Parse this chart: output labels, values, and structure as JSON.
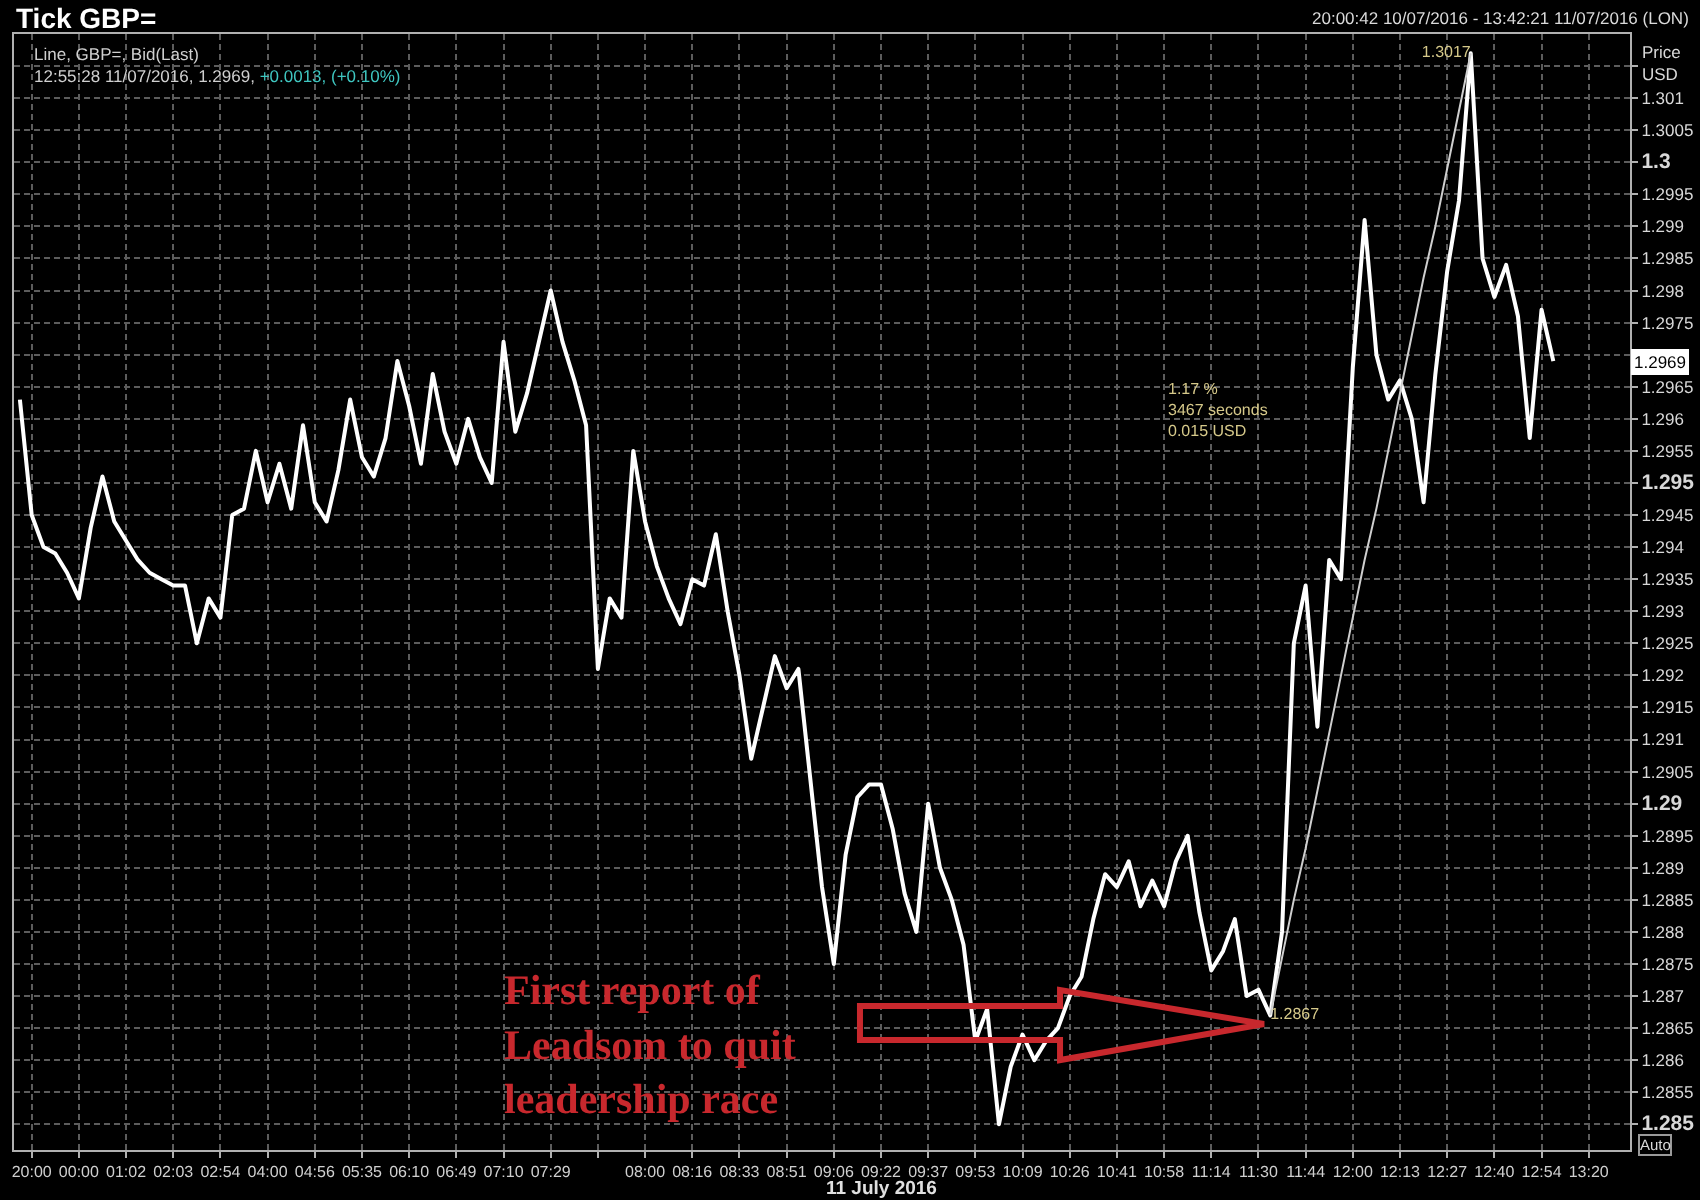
{
  "chart_data": {
    "type": "line",
    "title": "Tick GBP=",
    "xlabel": "11 July 2016",
    "ylabel": "Price\nUSD",
    "annotations": [
      "Line, GBP=, Bid(Last)",
      "12:55:28 11/07/2016, 1.2969,",
      "+0.0013, (+0.10%)",
      "20:00:42 10/07/2016 - 13:42:21 11/07/2016 (LON)",
      "1.17 %\n3467 seconds\n0.015 USD",
      "First report of\nLeadsom to quit\nleadership race",
      "Auto",
      {
        "text": "1.2969",
        "y": 1.2969
      }
    ],
    "categories": [
      null,
      "20:00",
      null,
      null,
      null,
      "00:00",
      null,
      null,
      null,
      "01:02",
      null,
      null,
      null,
      "02:03",
      null,
      null,
      null,
      "02:54",
      null,
      null,
      null,
      "04:00",
      null,
      null,
      null,
      "04:56",
      null,
      null,
      null,
      "05:35",
      null,
      null,
      null,
      "06:10",
      null,
      null,
      null,
      "06:49",
      null,
      null,
      null,
      "07:10",
      null,
      null,
      null,
      "07:29",
      null,
      null,
      null,
      null,
      null,
      null,
      null,
      "08:00",
      null,
      null,
      null,
      "08:16",
      null,
      null,
      null,
      "08:33",
      null,
      null,
      null,
      "08:51",
      null,
      null,
      null,
      "09:06",
      null,
      null,
      null,
      "09:22",
      null,
      null,
      null,
      "09:37",
      null,
      null,
      null,
      "09:53",
      null,
      null,
      null,
      "10:09",
      null,
      null,
      null,
      "10:26",
      null,
      null,
      null,
      "10:41",
      null,
      null,
      null,
      "10:58",
      null,
      null,
      null,
      "11:14",
      null,
      null,
      null,
      "11:30",
      null,
      null,
      null,
      "11:44",
      null,
      null,
      null,
      "12:00",
      null,
      null,
      null,
      "12:13",
      null,
      null,
      null,
      "12:27",
      null,
      null,
      null,
      "12:40",
      null,
      null,
      null,
      "12:54",
      null,
      null,
      null,
      "13:20",
      null,
      null,
      null
    ],
    "series": [
      {
        "color": "#ffffff",
        "values": [
          1.2963,
          1.2945,
          1.294,
          1.2939,
          1.2936,
          1.2932,
          1.2943,
          1.2951,
          1.2944,
          1.2941,
          1.2938,
          1.2936,
          1.2935,
          1.2934,
          1.2934,
          1.2925,
          1.2932,
          1.2929,
          1.2945,
          1.2946,
          1.2955,
          1.2947,
          1.2953,
          1.2946,
          1.2959,
          1.2947,
          1.2944,
          1.2952,
          1.2963,
          1.2954,
          1.2951,
          1.2957,
          1.2969,
          1.2962,
          1.2953,
          1.2967,
          1.2958,
          1.2953,
          1.296,
          1.2954,
          1.295,
          1.2972,
          1.2958,
          1.2964,
          1.2972,
          1.298,
          1.2972,
          1.2966,
          1.2959,
          1.2921,
          1.2932,
          1.2929,
          1.2955,
          1.2944,
          1.2937,
          1.2932,
          1.2928,
          1.2935,
          1.2934,
          1.2942,
          1.293,
          1.292,
          1.2907,
          1.2915,
          1.2923,
          1.2918,
          1.2921,
          1.2904,
          1.2887,
          1.2875,
          1.2892,
          1.2901,
          1.2903,
          1.2903,
          1.2896,
          1.2886,
          1.288,
          1.29,
          1.289,
          1.2885,
          1.2878,
          1.2863,
          1.2868,
          1.285,
          1.2859,
          1.2864,
          1.286,
          1.2863,
          1.2865,
          1.287,
          1.2873,
          1.2882,
          1.2889,
          1.2887,
          1.2891,
          1.2884,
          1.2888,
          1.2884,
          1.2891,
          1.2895,
          1.2883,
          1.2874,
          1.2877,
          1.2882,
          1.287,
          1.2871,
          1.2867,
          1.288,
          1.2925,
          1.2934,
          1.2912,
          1.2938,
          1.2935,
          1.2968,
          1.2991,
          1.297,
          1.2963,
          1.2966,
          1.296,
          1.2947,
          1.2967,
          1.2983,
          1.2994,
          1.3017,
          1.2985,
          1.2979,
          1.2984,
          1.2976,
          1.2957,
          1.2977,
          1.2969,
          null,
          null,
          null,
          null,
          null,
          null
        ],
        "value_labels": [
          null,
          null,
          null,
          null,
          null,
          null,
          null,
          null,
          null,
          null,
          null,
          null,
          null,
          null,
          null,
          null,
          null,
          null,
          null,
          null,
          null,
          null,
          null,
          null,
          null,
          null,
          null,
          null,
          null,
          null,
          null,
          null,
          null,
          null,
          null,
          null,
          null,
          null,
          null,
          null,
          null,
          null,
          null,
          null,
          null,
          null,
          null,
          null,
          null,
          null,
          null,
          null,
          null,
          null,
          null,
          null,
          null,
          null,
          null,
          null,
          null,
          null,
          null,
          null,
          null,
          null,
          null,
          null,
          null,
          null,
          null,
          null,
          null,
          null,
          null,
          null,
          null,
          null,
          null,
          null,
          null,
          null,
          null,
          null,
          null,
          null,
          null,
          null,
          null,
          null,
          null,
          null,
          null,
          null,
          null,
          null,
          null,
          null,
          null,
          null,
          null,
          null,
          null,
          null,
          null,
          null,
          "1.2867",
          null,
          null,
          null,
          null,
          null,
          null,
          null,
          null,
          null,
          null,
          null,
          null,
          null,
          null,
          null,
          null,
          "1.3017",
          null,
          null,
          null,
          null,
          null,
          null,
          null,
          null,
          null,
          null,
          null,
          null,
          null
        ]
      },
      {
        "color": "#cfcfcf",
        "values": [
          null,
          null,
          null,
          null,
          null,
          null,
          null,
          null,
          null,
          null,
          null,
          null,
          null,
          null,
          null,
          null,
          null,
          null,
          null,
          null,
          null,
          null,
          null,
          null,
          null,
          null,
          null,
          null,
          null,
          null,
          null,
          null,
          null,
          null,
          null,
          null,
          null,
          null,
          null,
          null,
          null,
          null,
          null,
          null,
          null,
          null,
          null,
          null,
          null,
          null,
          null,
          null,
          null,
          null,
          null,
          null,
          null,
          null,
          null,
          null,
          null,
          null,
          null,
          null,
          null,
          null,
          null,
          null,
          null,
          null,
          null,
          null,
          null,
          null,
          null,
          null,
          null,
          null,
          null,
          null,
          null,
          null,
          null,
          null,
          null,
          null,
          null,
          null,
          null,
          null,
          null,
          null,
          null,
          null,
          null,
          null,
          null,
          null,
          null,
          null,
          null,
          null,
          null,
          null,
          null,
          null,
          1.2867,
          1.2876,
          1.2885,
          1.2893,
          1.2902,
          1.2911,
          1.292,
          1.2929,
          1.2938,
          1.2946,
          1.2955,
          1.2964,
          1.2973,
          1.2982,
          1.299,
          1.2999,
          1.3008,
          1.3017,
          null,
          null,
          null,
          null,
          null,
          null,
          null,
          null,
          null,
          null,
          null,
          null,
          null
        ]
      }
    ],
    "ylim": [
      1.2846,
      1.302
    ],
    "yticks": [
      1.285,
      1.2855,
      1.286,
      1.2865,
      1.287,
      1.2875,
      1.288,
      1.2885,
      1.289,
      1.2895,
      1.29,
      1.2905,
      1.291,
      1.2915,
      1.292,
      1.2925,
      1.293,
      1.2935,
      1.294,
      1.2945,
      1.295,
      1.2955,
      1.296,
      1.2965,
      {
        "value": 1.297,
        "label": null
      },
      1.2975,
      1.298,
      1.2985,
      1.299,
      1.2995,
      1.3,
      1.3005,
      1.301,
      {
        "value": 1.3015,
        "label": null
      }
    ],
    "grid": true
  }
}
